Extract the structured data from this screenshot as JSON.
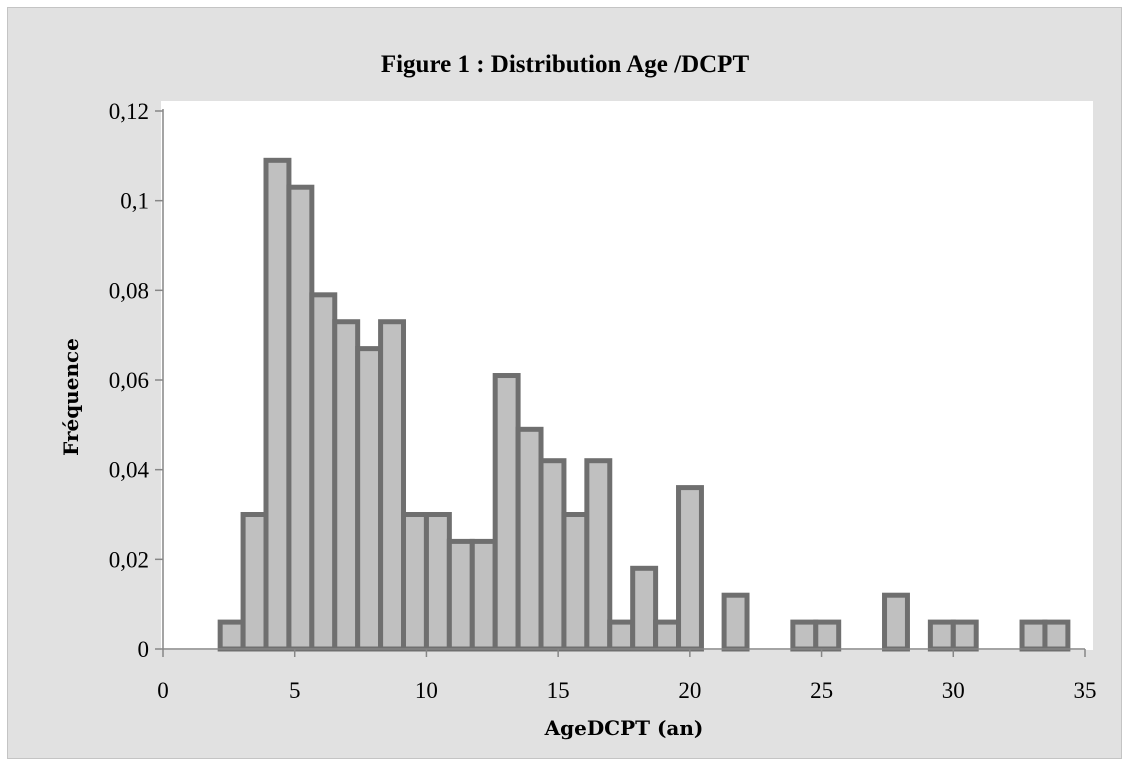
{
  "chart_data": {
    "type": "bar",
    "title": "Figure 1 : Distribution Age /DCPT",
    "xlabel": "AgeDCPT (an)",
    "ylabel": "Fréquence",
    "xlim": [
      0,
      35
    ],
    "ylim": [
      0,
      0.12
    ],
    "x_ticks": [
      "0",
      "5",
      "10",
      "15",
      "20",
      "25",
      "30",
      "35"
    ],
    "y_ticks": [
      "0",
      "0,02",
      "0,04",
      "0,06",
      "0,08",
      "0,1",
      "0,12"
    ],
    "bin_width": 0.87,
    "bins": [
      {
        "x": 2.17,
        "value": 0.006
      },
      {
        "x": 3.04,
        "value": 0.03
      },
      {
        "x": 3.91,
        "value": 0.109
      },
      {
        "x": 4.78,
        "value": 0.103
      },
      {
        "x": 5.65,
        "value": 0.079
      },
      {
        "x": 6.52,
        "value": 0.073
      },
      {
        "x": 7.39,
        "value": 0.067
      },
      {
        "x": 8.26,
        "value": 0.073
      },
      {
        "x": 9.13,
        "value": 0.03
      },
      {
        "x": 10.0,
        "value": 0.03
      },
      {
        "x": 10.87,
        "value": 0.024
      },
      {
        "x": 11.74,
        "value": 0.024
      },
      {
        "x": 12.61,
        "value": 0.061
      },
      {
        "x": 13.48,
        "value": 0.049
      },
      {
        "x": 14.35,
        "value": 0.042
      },
      {
        "x": 15.22,
        "value": 0.03
      },
      {
        "x": 16.09,
        "value": 0.042
      },
      {
        "x": 16.96,
        "value": 0.006
      },
      {
        "x": 17.83,
        "value": 0.018
      },
      {
        "x": 18.7,
        "value": 0.006
      },
      {
        "x": 19.57,
        "value": 0.036
      },
      {
        "x": 21.3,
        "value": 0.012
      },
      {
        "x": 23.91,
        "value": 0.006
      },
      {
        "x": 24.78,
        "value": 0.006
      },
      {
        "x": 27.39,
        "value": 0.012
      },
      {
        "x": 29.13,
        "value": 0.006
      },
      {
        "x": 30.0,
        "value": 0.006
      },
      {
        "x": 32.61,
        "value": 0.006
      },
      {
        "x": 33.48,
        "value": 0.006
      }
    ],
    "colors": {
      "frame_background": "#e1e1e1",
      "plot_background": "#ffffff",
      "bar_fill": "#c0c0c0",
      "bar_stroke": "#6f6f6f",
      "axis": "#868686"
    },
    "grid": false,
    "legend": "none"
  }
}
